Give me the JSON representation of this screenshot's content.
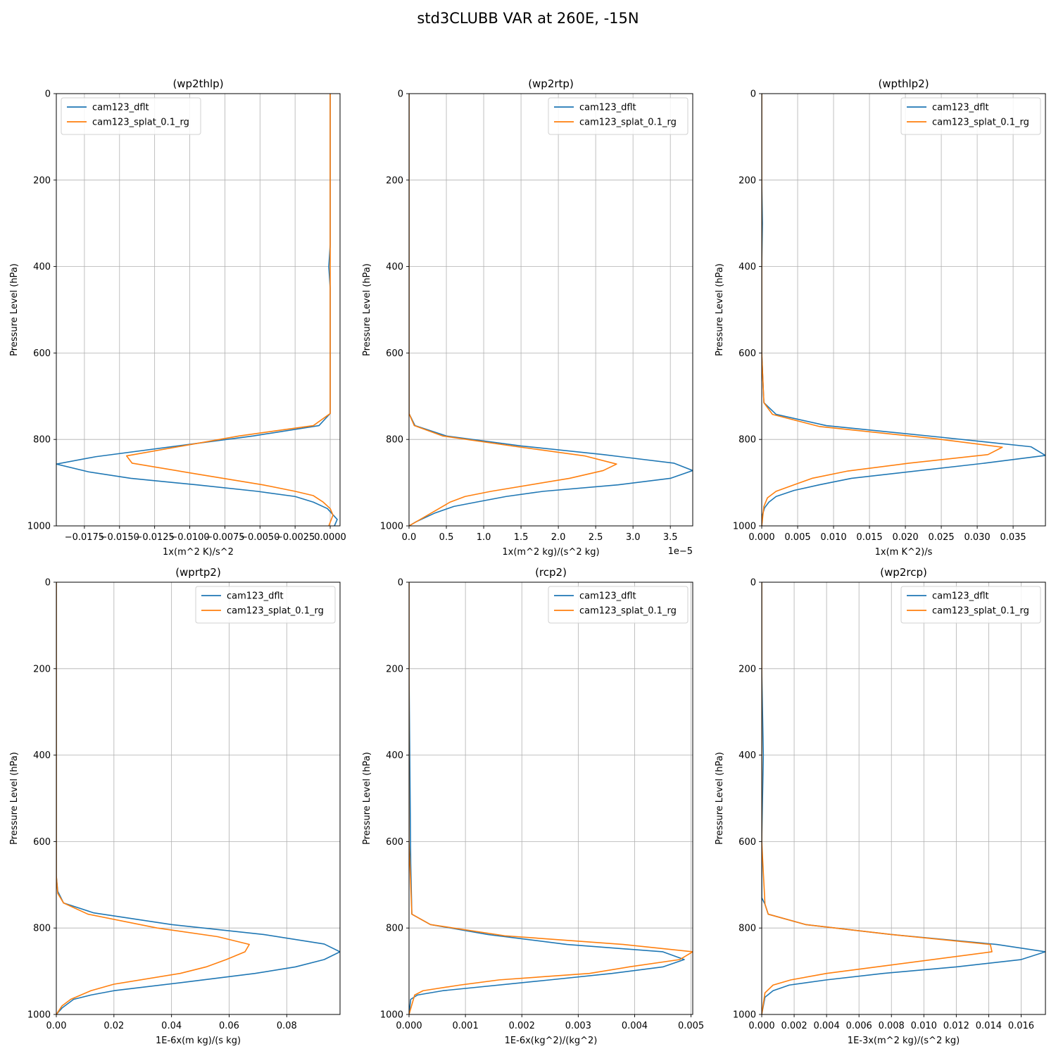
{
  "figure": {
    "title": "std3CLUBB VAR at 260E, -15N"
  },
  "colors": {
    "dflt": "#1f77b4",
    "splat": "#ff7f0e",
    "grid": "#b0b0b0"
  },
  "chart_data": [
    {
      "type": "line",
      "title": "(wp2thlp)",
      "xlabel": "1x(m^2 K)/s^2",
      "ylabel": "Pressure Level (hPa)",
      "xlim": [
        -0.0195,
        0.0007
      ],
      "ylim": [
        1000,
        0
      ],
      "xticks": [
        -0.0175,
        -0.015,
        -0.0125,
        -0.01,
        -0.0075,
        -0.005,
        -0.0025,
        0.0
      ],
      "xticklabels": [
        "−0.0175",
        "−0.0150",
        "−0.0125",
        "−0.0100",
        "−0.0075",
        "−0.0050",
        "−0.0025",
        "0.0000"
      ],
      "yticks": [
        0,
        200,
        400,
        600,
        800,
        1000
      ],
      "yticklabels": [
        "0",
        "200",
        "400",
        "600",
        "800",
        "1000"
      ],
      "offset_text": "",
      "legend": "upper-left",
      "series": [
        {
          "name": "cam123_dflt",
          "color": "#1f77b4",
          "x": [
            0.0,
            0.0,
            0.0,
            -0.0001,
            0.0,
            0.0,
            0.0,
            -0.0008,
            -0.0055,
            -0.0167,
            -0.0195,
            -0.0172,
            -0.0142,
            -0.0095,
            -0.0052,
            -0.0025,
            -0.0012,
            -0.0002,
            0.0005,
            0.0003
          ],
          "y": [
            0,
            200,
            350,
            400,
            450,
            600,
            740,
            768,
            792,
            840,
            857,
            875,
            890,
            905,
            920,
            932,
            945,
            960,
            985,
            1000
          ]
        },
        {
          "name": "cam123_splat_0.1_rg",
          "color": "#ff7f0e",
          "x": [
            0.0,
            0.0,
            0.0,
            0.0,
            0.0,
            -0.0012,
            -0.0065,
            -0.0145,
            -0.0141,
            -0.0095,
            -0.0048,
            -0.0025,
            -0.0012,
            -0.0005,
            0.0,
            0.0002,
            -0.0001
          ],
          "y": [
            0,
            200,
            400,
            600,
            740,
            768,
            792,
            838,
            855,
            880,
            905,
            920,
            930,
            945,
            960,
            975,
            1000
          ]
        }
      ]
    },
    {
      "type": "line",
      "title": "(wp2rtp)",
      "xlabel": "1x(m^2 kg)/(s^2 kg)",
      "ylabel": "Pressure Level (hPa)",
      "xlim": [
        0,
        3.8
      ],
      "ylim": [
        1000,
        0
      ],
      "xticks": [
        0,
        0.5,
        1.0,
        1.5,
        2.0,
        2.5,
        3.0,
        3.5
      ],
      "xticklabels": [
        "0.0",
        "0.5",
        "1.0",
        "1.5",
        "2.0",
        "2.5",
        "3.0",
        "3.5"
      ],
      "yticks": [
        0,
        200,
        400,
        600,
        800,
        1000
      ],
      "yticklabels": [
        "0",
        "200",
        "400",
        "600",
        "800",
        "1000"
      ],
      "offset_text": "1e−5",
      "legend": "upper-right",
      "series": [
        {
          "name": "cam123_dflt",
          "color": "#1f77b4",
          "x": [
            0.0,
            0.0,
            0.0,
            0.0,
            0.0,
            0.08,
            0.5,
            1.5,
            2.6,
            3.55,
            3.8,
            3.5,
            2.8,
            1.8,
            1.3,
            0.9,
            0.6,
            0.35,
            0.1,
            0.0
          ],
          "y": [
            0,
            200,
            350,
            600,
            740,
            768,
            792,
            815,
            835,
            855,
            872,
            890,
            905,
            920,
            932,
            945,
            955,
            970,
            990,
            1000
          ]
        },
        {
          "name": "cam123_splat_0.1_rg",
          "color": "#ff7f0e",
          "x": [
            0.0,
            0.0,
            0.0,
            0.07,
            0.45,
            1.5,
            2.35,
            2.78,
            2.6,
            2.15,
            1.1,
            0.75,
            0.55,
            0.35,
            0.0
          ],
          "y": [
            0,
            400,
            740,
            768,
            792,
            818,
            838,
            857,
            872,
            890,
            920,
            932,
            945,
            965,
            1000
          ]
        }
      ]
    },
    {
      "type": "line",
      "title": "(wpthlp2)",
      "xlabel": "1x(m K^2)/s",
      "ylabel": "Pressure Level (hPa)",
      "xlim": [
        0,
        0.0395
      ],
      "ylim": [
        1000,
        0
      ],
      "xticks": [
        0,
        0.005,
        0.01,
        0.015,
        0.02,
        0.025,
        0.03,
        0.035
      ],
      "xticklabels": [
        "0.000",
        "0.005",
        "0.010",
        "0.015",
        "0.020",
        "0.025",
        "0.030",
        "0.035"
      ],
      "yticks": [
        0,
        200,
        400,
        600,
        800,
        1000
      ],
      "yticklabels": [
        "0",
        "200",
        "400",
        "600",
        "800",
        "1000"
      ],
      "offset_text": "",
      "legend": "upper-right",
      "series": [
        {
          "name": "cam123_dflt",
          "color": "#1f77b4",
          "x": [
            0.0,
            0.0,
            0.0001,
            0.0,
            0.0,
            0.0003,
            0.002,
            0.009,
            0.025,
            0.0375,
            0.0395,
            0.031,
            0.0125,
            0.008,
            0.0045,
            0.002,
            0.001,
            0.0004,
            0.0001,
            0.0
          ],
          "y": [
            0,
            200,
            300,
            400,
            600,
            715,
            742,
            768,
            795,
            817,
            837,
            855,
            890,
            905,
            918,
            932,
            945,
            958,
            975,
            1000
          ]
        },
        {
          "name": "cam123_splat_0.1_rg",
          "color": "#ff7f0e",
          "x": [
            0.0,
            0.0,
            0.0003,
            0.0015,
            0.008,
            0.024,
            0.0335,
            0.0315,
            0.0205,
            0.012,
            0.007,
            0.0045,
            0.002,
            0.0008,
            0.0003,
            0.0
          ],
          "y": [
            0,
            600,
            715,
            742,
            770,
            798,
            818,
            835,
            855,
            873,
            890,
            905,
            920,
            935,
            955,
            1000
          ]
        }
      ]
    },
    {
      "type": "line",
      "title": "(wprtp2)",
      "xlabel": "1E-6x(m kg)/(s kg)",
      "ylabel": "Pressure Level (hPa)",
      "xlim": [
        0,
        0.0985
      ],
      "ylim": [
        1000,
        0
      ],
      "xticks": [
        0,
        0.02,
        0.04,
        0.06,
        0.08
      ],
      "xticklabels": [
        "0.00",
        "0.02",
        "0.04",
        "0.06",
        "0.08"
      ],
      "yticks": [
        0,
        200,
        400,
        600,
        800,
        1000
      ],
      "yticklabels": [
        "0",
        "200",
        "400",
        "600",
        "800",
        "1000"
      ],
      "offset_text": "",
      "legend": "upper-right",
      "series": [
        {
          "name": "cam123_dflt",
          "color": "#1f77b4",
          "x": [
            0.0,
            0.0,
            0.0,
            0.0005,
            0.0025,
            0.013,
            0.04,
            0.072,
            0.093,
            0.0985,
            0.093,
            0.083,
            0.069,
            0.045,
            0.02,
            0.012,
            0.006,
            0.002,
            0.0
          ],
          "y": [
            0,
            200,
            680,
            715,
            742,
            765,
            792,
            815,
            837,
            855,
            873,
            890,
            905,
            925,
            945,
            955,
            965,
            985,
            1000
          ]
        },
        {
          "name": "cam123_splat_0.1_rg",
          "color": "#ff7f0e",
          "x": [
            0.0,
            0.0,
            0.0005,
            0.0025,
            0.011,
            0.035,
            0.056,
            0.067,
            0.0655,
            0.059,
            0.052,
            0.043,
            0.02,
            0.012,
            0.005,
            0.002,
            0.0
          ],
          "y": [
            0,
            680,
            720,
            742,
            768,
            800,
            820,
            838,
            855,
            873,
            890,
            905,
            930,
            945,
            965,
            980,
            1000
          ]
        }
      ]
    },
    {
      "type": "line",
      "title": "(rcp2)",
      "xlabel": "1E-6x(kg^2)/(kg^2)",
      "ylabel": "Pressure Level (hPa)",
      "xlim": [
        0,
        0.00503
      ],
      "ylim": [
        1000,
        0
      ],
      "xticks": [
        0,
        0.001,
        0.002,
        0.003,
        0.004,
        0.005
      ],
      "xticklabels": [
        "0.000",
        "0.001",
        "0.002",
        "0.003",
        "0.004",
        "0.005"
      ],
      "yticks": [
        0,
        200,
        400,
        600,
        800,
        1000
      ],
      "yticklabels": [
        "0",
        "200",
        "400",
        "600",
        "800",
        "1000"
      ],
      "offset_text": "",
      "legend": "upper-right",
      "series": [
        {
          "name": "cam123_dflt",
          "color": "#1f77b4",
          "x": [
            0.0,
            0.0,
            1e-05,
            3e-05,
            5e-05,
            0.00038,
            0.0014,
            0.0028,
            0.0045,
            0.00488,
            0.0045,
            0.0036,
            0.0025,
            0.0006,
            0.00015,
            3e-05,
            0.0
          ],
          "y": [
            0,
            200,
            350,
            650,
            768,
            792,
            815,
            838,
            855,
            873,
            890,
            905,
            920,
            945,
            955,
            965,
            1000
          ]
        },
        {
          "name": "cam123_splat_0.1_rg",
          "color": "#ff7f0e",
          "x": [
            0.0,
            0.0,
            3e-05,
            5e-05,
            0.00038,
            0.0017,
            0.0038,
            0.00503,
            0.0048,
            0.0039,
            0.0032,
            0.0016,
            0.0009,
            0.00025,
            0.0001,
            0.0
          ],
          "y": [
            0,
            600,
            700,
            768,
            792,
            818,
            838,
            855,
            873,
            890,
            905,
            920,
            932,
            945,
            955,
            1000
          ]
        }
      ]
    },
    {
      "type": "line",
      "title": "(wp2rcp)",
      "xlabel": "1E-3x(m^2 kg)/(s^2 kg)",
      "ylabel": "Pressure Level (hPa)",
      "xlim": [
        0,
        0.0175
      ],
      "ylim": [
        1000,
        0
      ],
      "xticks": [
        0,
        0.002,
        0.004,
        0.006,
        0.008,
        0.01,
        0.012,
        0.014,
        0.016
      ],
      "xticklabels": [
        "0.000",
        "0.002",
        "0.004",
        "0.006",
        "0.008",
        "0.010",
        "0.012",
        "0.014",
        "0.016"
      ],
      "yticks": [
        0,
        200,
        400,
        600,
        800,
        1000
      ],
      "yticklabels": [
        "0",
        "200",
        "400",
        "600",
        "800",
        "1000"
      ],
      "offset_text": "",
      "legend": "upper-right",
      "series": [
        {
          "name": "cam123_dflt",
          "color": "#1f77b4",
          "x": [
            0.0,
            0.0,
            0.0001,
            0.0,
            0.0,
            0.0002,
            0.0004,
            0.0027,
            0.008,
            0.0145,
            0.0175,
            0.016,
            0.012,
            0.0075,
            0.004,
            0.0017,
            0.0007,
            0.0002,
            0.0
          ],
          "y": [
            0,
            200,
            400,
            600,
            730,
            745,
            768,
            792,
            815,
            838,
            855,
            873,
            890,
            905,
            920,
            932,
            945,
            960,
            1000
          ]
        },
        {
          "name": "cam123_splat_0.1_rg",
          "color": "#ff7f0e",
          "x": [
            0.0,
            0.0,
            0.0002,
            0.0004,
            0.0027,
            0.008,
            0.0141,
            0.0142,
            0.0075,
            0.004,
            0.0018,
            0.0007,
            0.0002,
            0.0
          ],
          "y": [
            0,
            600,
            745,
            768,
            792,
            815,
            838,
            855,
            888,
            905,
            920,
            932,
            950,
            1000
          ]
        }
      ]
    }
  ]
}
